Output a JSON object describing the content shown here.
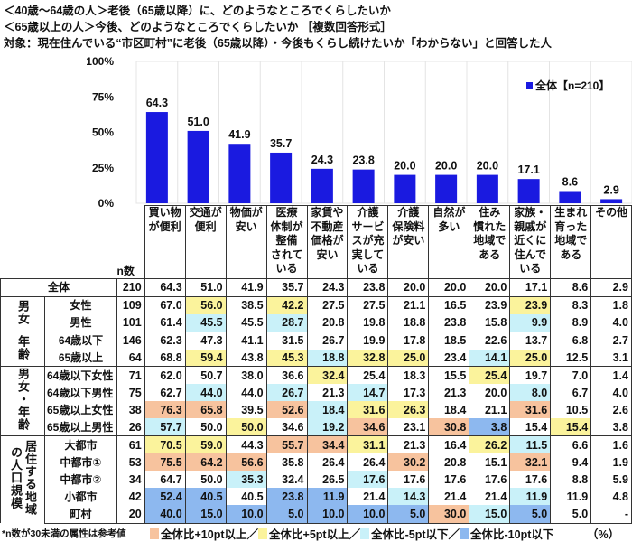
{
  "title": {
    "line1": "＜40歳～64歳の人＞老後（65歳以降）に、どのようなところでくらしたいか",
    "line2": "＜65歳以上の人＞今後、どのようなところでくらしたいか ［複数回答形式］",
    "line3": "対象：現在住んでいる“市区町村”に老後（65歳以降）・今後もくらし続けたいか「わからない」と回答した人"
  },
  "chart_data": {
    "type": "bar",
    "categories": [
      "買い物\nが便利",
      "交通が\n便利",
      "物価が\n安い",
      "医療\n体制が\n整備\nされて\nいる",
      "家賃や\n不動産\n価格が\n安い",
      "介護\nサービ\nスが充\n実して\nいる",
      "介護\n保険料\nが安い",
      "自然が\n多い",
      "住み\n慣れた\n地域で\nある",
      "家族・\n親戚が\n近くに\n住んで\nいる",
      "生まれ\n育った\n地域で\nある",
      "その他"
    ],
    "series": [
      {
        "name": "全体【n=210】",
        "values": [
          64.3,
          51.0,
          41.9,
          35.7,
          24.3,
          23.8,
          20.0,
          20.0,
          20.0,
          17.1,
          8.6,
          2.9
        ],
        "color": "#1a1ae0"
      }
    ],
    "yticks": [
      "0%",
      "25%",
      "50%",
      "75%",
      "100%"
    ],
    "ylim": [
      0,
      100
    ],
    "grid": "vertical",
    "legend": "top-right"
  },
  "table": {
    "n_header": "n数",
    "rows": [
      {
        "group": "",
        "label": "全体",
        "n": "210",
        "values": [
          "64.3",
          "51.0",
          "41.9",
          "35.7",
          "24.3",
          "23.8",
          "20.0",
          "20.0",
          "20.0",
          "17.1",
          "8.6",
          "2.9"
        ]
      },
      {
        "group": "男女",
        "label": "女性",
        "n": "109",
        "values": [
          "67.0",
          "56.0",
          "38.5",
          "42.2",
          "27.5",
          "27.5",
          "21.1",
          "16.5",
          "23.9",
          "23.9",
          "8.3",
          "1.8"
        ]
      },
      {
        "group": "男女",
        "label": "男性",
        "n": "101",
        "values": [
          "61.4",
          "45.5",
          "45.5",
          "28.7",
          "20.8",
          "19.8",
          "18.8",
          "23.8",
          "15.8",
          "9.9",
          "8.9",
          "4.0"
        ]
      },
      {
        "group": "年齢",
        "label": "64歳以下",
        "n": "146",
        "values": [
          "62.3",
          "47.3",
          "41.1",
          "31.5",
          "26.7",
          "19.9",
          "17.8",
          "18.5",
          "22.6",
          "13.7",
          "6.8",
          "2.7"
        ]
      },
      {
        "group": "年齢",
        "label": "65歳以上",
        "n": "64",
        "values": [
          "68.8",
          "59.4",
          "43.8",
          "45.3",
          "18.8",
          "32.8",
          "25.0",
          "23.4",
          "14.1",
          "25.0",
          "12.5",
          "3.1"
        ]
      },
      {
        "group": "男女・年齢",
        "label": "64歳以下女性",
        "n": "71",
        "values": [
          "62.0",
          "50.7",
          "38.0",
          "36.6",
          "32.4",
          "25.4",
          "18.3",
          "15.5",
          "25.4",
          "19.7",
          "7.0",
          "1.4"
        ]
      },
      {
        "group": "男女・年齢",
        "label": "64歳以下男性",
        "n": "75",
        "values": [
          "62.7",
          "44.0",
          "44.0",
          "26.7",
          "21.3",
          "14.7",
          "17.3",
          "21.3",
          "20.0",
          "8.0",
          "6.7",
          "4.0"
        ]
      },
      {
        "group": "男女・年齢",
        "label": "65歳以上女性",
        "n": "38",
        "values": [
          "76.3",
          "65.8",
          "39.5",
          "52.6",
          "18.4",
          "31.6",
          "26.3",
          "18.4",
          "21.1",
          "31.6",
          "10.5",
          "2.6"
        ]
      },
      {
        "group": "男女・年齢",
        "label": "65歳以上男性",
        "n": "26",
        "values": [
          "57.7",
          "50.0",
          "50.0",
          "34.6",
          "19.2",
          "34.6",
          "23.1",
          "30.8",
          "3.8",
          "15.4",
          "15.4",
          "3.8"
        ]
      },
      {
        "group": "居住する地域の人口規模",
        "label": "大都市",
        "n": "61",
        "values": [
          "70.5",
          "59.0",
          "44.3",
          "55.7",
          "34.4",
          "31.1",
          "21.3",
          "16.4",
          "26.2",
          "11.5",
          "6.6",
          "1.6"
        ]
      },
      {
        "group": "居住する地域の人口規模",
        "label": "中都市①",
        "n": "53",
        "values": [
          "75.5",
          "64.2",
          "56.6",
          "35.8",
          "26.4",
          "26.4",
          "30.2",
          "20.8",
          "15.1",
          "32.1",
          "9.4",
          "1.9"
        ]
      },
      {
        "group": "居住する地域の人口規模",
        "label": "中都市②",
        "n": "34",
        "values": [
          "64.7",
          "50.0",
          "35.3",
          "32.4",
          "26.5",
          "17.6",
          "17.6",
          "17.6",
          "17.6",
          "17.6",
          "8.8",
          "5.9"
        ]
      },
      {
        "group": "居住する地域の人口規模",
        "label": "小都市",
        "n": "42",
        "values": [
          "52.4",
          "40.5",
          "40.5",
          "23.8",
          "11.9",
          "21.4",
          "14.3",
          "21.4",
          "21.4",
          "11.9",
          "11.9",
          "4.8"
        ]
      },
      {
        "group": "居住する地域の人口規模",
        "label": "町村",
        "n": "20",
        "values": [
          "40.0",
          "15.0",
          "10.0",
          "5.0",
          "10.0",
          "10.0",
          "5.0",
          "30.0",
          "15.0",
          "5.0",
          "5.0",
          "-"
        ]
      }
    ]
  },
  "footer": {
    "note": "*n数が30未満の属性は参考値",
    "legend": [
      {
        "label": "全体比+10pt以上／",
        "color": "#f7c39e"
      },
      {
        "label": "全体比+5pt以上／",
        "color": "#fbf39c"
      },
      {
        "label": "全体比-5pt以下／",
        "color": "#c9f1f9"
      },
      {
        "label": "全体比-10pt以下",
        "color": "#8db8ef"
      }
    ],
    "unit": "（%）"
  }
}
